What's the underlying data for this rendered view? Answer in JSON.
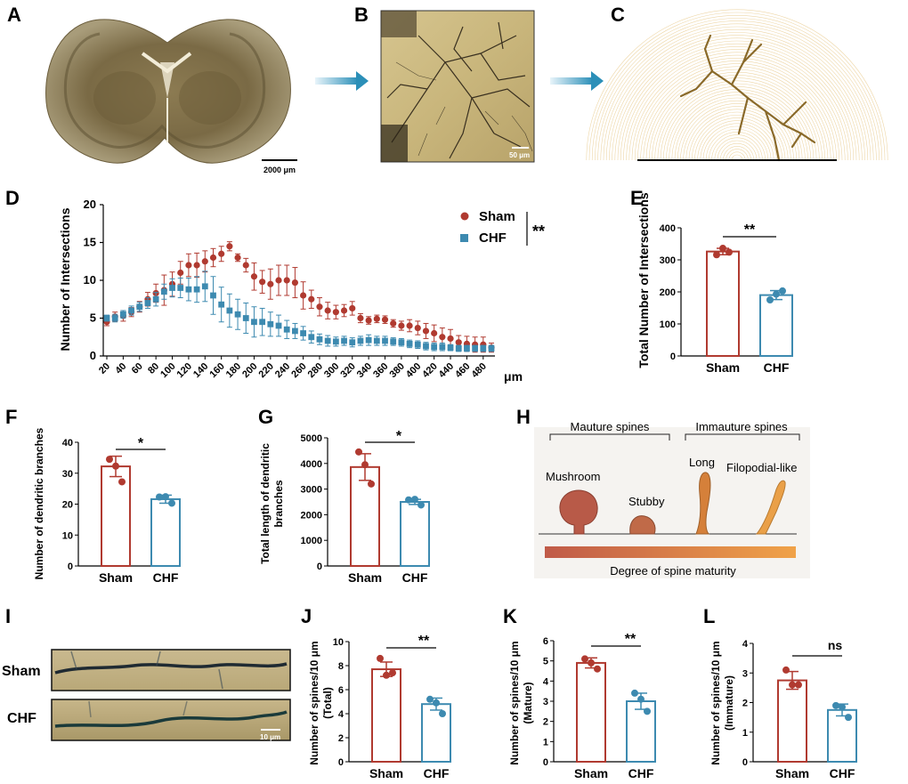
{
  "labels": {
    "A": "A",
    "B": "B",
    "C": "C",
    "D": "D",
    "E": "E",
    "F": "F",
    "G": "G",
    "H": "H",
    "I": "I",
    "J": "J",
    "K": "K",
    "L": "L"
  },
  "colors": {
    "sham": "#b03a30",
    "chf": "#3d8ab0",
    "bar_sham": "#b03a30",
    "bar_chf": "#3d8ab0",
    "arrow": "#2b8fb8"
  },
  "panel_a": {
    "scale_label": "2000 μm"
  },
  "panel_b": {
    "scale_label": "50 μm"
  },
  "panel_d": {
    "ylabel": "Number of Intersections",
    "x_unit": "μm",
    "legend": {
      "sham": "Sham",
      "chf": "CHF",
      "sig": "**"
    },
    "yticks": [
      "0",
      "5",
      "10",
      "15",
      "20"
    ],
    "xticks": [
      "20",
      "40",
      "60",
      "80",
      "100",
      "120",
      "140",
      "160",
      "180",
      "200",
      "220",
      "240",
      "260",
      "280",
      "300",
      "320",
      "340",
      "360",
      "380",
      "400",
      "420",
      "440",
      "460",
      "480"
    ]
  },
  "panel_e": {
    "ylabel": "Total Number of Intersections",
    "yticks": [
      "0",
      "100",
      "200",
      "300",
      "400"
    ],
    "sig": "**",
    "categories": [
      "Sham",
      "CHF"
    ]
  },
  "panel_f": {
    "ylabel": "Number of dendritic branches",
    "yticks": [
      "0",
      "10",
      "20",
      "30",
      "40"
    ],
    "sig": "*",
    "categories": [
      "Sham",
      "CHF"
    ]
  },
  "panel_g": {
    "ylabel1": "Total length of dendritic",
    "ylabel2": "branches",
    "yticks": [
      "0",
      "1000",
      "2000",
      "3000",
      "4000",
      "5000"
    ],
    "sig": "*",
    "categories": [
      "Sham",
      "CHF"
    ]
  },
  "panel_h": {
    "mature": "Mauture spines",
    "immature": "Immauture spines",
    "mushroom": "Mushroom",
    "stubby": "Stubby",
    "long": "Long",
    "filo": "Filopodial-like",
    "degree": "Degree of spine maturity"
  },
  "panel_i": {
    "sham": "Sham",
    "chf": "CHF",
    "scale_label": "10 μm"
  },
  "panel_j": {
    "ylabel1": "Number of spines/10 μm",
    "ylabel2": "(Total)",
    "yticks": [
      "0",
      "2",
      "4",
      "6",
      "8",
      "10"
    ],
    "sig": "**",
    "categories": [
      "Sham",
      "CHF"
    ]
  },
  "panel_k": {
    "ylabel1": "Number of spines/10 μm",
    "ylabel2": "(Mature)",
    "yticks": [
      "0",
      "1",
      "2",
      "3",
      "4",
      "5",
      "6"
    ],
    "sig": "**",
    "categories": [
      "Sham",
      "CHF"
    ]
  },
  "panel_l": {
    "ylabel1": "Number of spines/10 μm",
    "ylabel2": "(Immature)",
    "yticks": [
      "0",
      "1",
      "2",
      "3",
      "4"
    ],
    "sig": "ns",
    "categories": [
      "Sham",
      "CHF"
    ]
  },
  "chart_data": [
    {
      "panel": "D",
      "type": "scatter",
      "x_unit": "μm",
      "ylabel": "Number of Intersections",
      "ylim": [
        0,
        20
      ],
      "x": [
        20,
        30,
        40,
        50,
        60,
        70,
        80,
        90,
        100,
        110,
        120,
        130,
        140,
        150,
        160,
        170,
        180,
        190,
        200,
        210,
        220,
        230,
        240,
        250,
        260,
        270,
        280,
        290,
        300,
        310,
        320,
        330,
        340,
        350,
        360,
        370,
        380,
        390,
        400,
        410,
        420,
        430,
        440,
        450,
        460,
        470,
        480,
        490
      ],
      "series": [
        {
          "name": "Sham",
          "values": [
            4.5,
            5.2,
            5.3,
            5.8,
            6.5,
            7.5,
            8.3,
            8.7,
            9.5,
            11,
            12,
            12,
            12.5,
            13,
            13.5,
            14.5,
            13,
            12,
            10.5,
            9.8,
            9.5,
            10,
            10,
            9.7,
            8,
            7.5,
            6.5,
            6,
            5.8,
            6,
            6.3,
            5,
            4.7,
            4.9,
            4.8,
            4.3,
            4,
            4,
            3.7,
            3.3,
            3,
            2.5,
            2.3,
            1.8,
            1.6,
            1.5,
            1.5,
            1.1
          ],
          "err": [
            0.5,
            0.6,
            0.7,
            0.6,
            0.7,
            0.9,
            1.2,
            2.0,
            1.6,
            1.5,
            1.5,
            1.6,
            1.4,
            1.2,
            1.0,
            0.6,
            0.5,
            0.9,
            1.8,
            1.5,
            2,
            2,
            2,
            2,
            1.8,
            1.2,
            1.2,
            1.1,
            0.9,
            0.8,
            0.9,
            0.6,
            0.5,
            0.5,
            0.5,
            0.5,
            0.6,
            0.8,
            0.9,
            1.0,
            1.1,
            1.2,
            1.2,
            0.9,
            1.0,
            1.0,
            1.0,
            0.6
          ]
        },
        {
          "name": "CHF",
          "values": [
            5,
            5,
            5.5,
            6,
            6.5,
            7,
            7.5,
            8.5,
            9,
            9,
            8.8,
            8.8,
            9.2,
            8,
            6.8,
            6,
            5.5,
            5,
            4.5,
            4.5,
            4.2,
            4,
            3.5,
            3.3,
            3,
            2.5,
            2.2,
            2,
            1.9,
            2,
            1.8,
            2,
            2.1,
            2,
            2,
            1.9,
            1.8,
            1.6,
            1.5,
            1.3,
            1.2,
            1.2,
            1.1,
            1.0,
            1.0,
            1.0,
            1.0,
            1.0
          ],
          "err": [
            0.4,
            0.5,
            0.5,
            0.6,
            0.6,
            0.7,
            0.9,
            1.0,
            1.2,
            1.3,
            1.5,
            1.7,
            2.0,
            2.5,
            2.3,
            2.2,
            2.0,
            2.0,
            2.0,
            1.8,
            1.6,
            1.4,
            1.2,
            1.0,
            0.9,
            0.8,
            0.7,
            0.7,
            0.6,
            0.6,
            0.6,
            0.6,
            0.7,
            0.6,
            0.6,
            0.5,
            0.5,
            0.5,
            0.5,
            0.5,
            0.5,
            0.5,
            0.4,
            0.4,
            0.4,
            0.4,
            0.4,
            0.4
          ]
        }
      ]
    },
    {
      "panel": "E",
      "type": "bar",
      "categories": [
        "Sham",
        "CHF"
      ],
      "ylabel": "Total Number of Intersections",
      "ylim": [
        0,
        400
      ],
      "values": [
        326,
        190
      ],
      "err": [
        10,
        14
      ],
      "points": [
        [
          316,
          336,
          324
        ],
        [
          175,
          193,
          203
        ]
      ]
    },
    {
      "panel": "F",
      "type": "bar",
      "categories": [
        "Sham",
        "CHF"
      ],
      "ylabel": "Number of dendritic branches",
      "ylim": [
        0,
        40
      ],
      "values": [
        32.2,
        21.6
      ],
      "err": [
        3.3,
        1.3
      ],
      "points": [
        [
          34.5,
          32.3,
          27.2
        ],
        [
          22.3,
          22.4,
          20.3
        ]
      ]
    },
    {
      "panel": "G",
      "type": "bar",
      "categories": [
        "Sham",
        "CHF"
      ],
      "ylabel": "Total length of dendritic branches",
      "ylim": [
        0,
        5000
      ],
      "values": [
        3860,
        2500
      ],
      "err": [
        520,
        100
      ],
      "points": [
        [
          4450,
          3950,
          3200
        ],
        [
          2580,
          2600,
          2380
        ]
      ]
    },
    {
      "panel": "J",
      "type": "bar",
      "categories": [
        "Sham",
        "CHF"
      ],
      "ylabel": "Number of spines/10 μm (Total)",
      "ylim": [
        0,
        10
      ],
      "values": [
        7.7,
        4.8
      ],
      "err": [
        0.6,
        0.5
      ],
      "points": [
        [
          8.6,
          7.2,
          7.4
        ],
        [
          5.2,
          4.9,
          4.0
        ]
      ]
    },
    {
      "panel": "K",
      "type": "bar",
      "categories": [
        "Sham",
        "CHF"
      ],
      "ylabel": "Number of spines/10 μm (Mature)",
      "ylim": [
        0,
        6
      ],
      "values": [
        4.9,
        3.0
      ],
      "err": [
        0.25,
        0.4
      ],
      "points": [
        [
          5.1,
          4.9,
          4.6
        ],
        [
          3.4,
          3.1,
          2.5
        ]
      ]
    },
    {
      "panel": "L",
      "type": "bar",
      "categories": [
        "Sham",
        "CHF"
      ],
      "ylabel": "Number of spines/10 μm (Immature)",
      "ylim": [
        0,
        4
      ],
      "values": [
        2.75,
        1.75
      ],
      "err": [
        0.3,
        0.2
      ],
      "points": [
        [
          3.1,
          2.6,
          2.6
        ],
        [
          1.9,
          1.85,
          1.5
        ]
      ]
    }
  ]
}
